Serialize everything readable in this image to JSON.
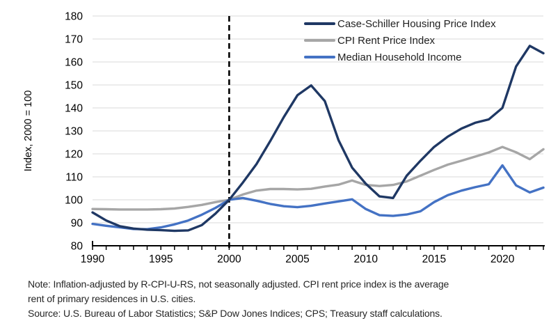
{
  "chart_data": {
    "type": "line",
    "title": "",
    "xlabel": "",
    "ylabel": "Index, 2000 = 100",
    "xlim": [
      1990,
      2023
    ],
    "ylim": [
      80,
      180
    ],
    "grid": "horizontal",
    "legend_position": "top-right-inside",
    "x_tick_labels": [
      1990,
      1995,
      2000,
      2005,
      2010,
      2015,
      2020
    ],
    "y_ticks": [
      80,
      90,
      100,
      110,
      120,
      130,
      140,
      150,
      160,
      170,
      180
    ],
    "reference_line": {
      "x": 2000,
      "style": "dashed",
      "color": "#000000"
    },
    "x": [
      1990,
      1991,
      1992,
      1993,
      1994,
      1995,
      1996,
      1997,
      1998,
      1999,
      2000,
      2001,
      2002,
      2003,
      2004,
      2005,
      2006,
      2007,
      2008,
      2009,
      2010,
      2011,
      2012,
      2013,
      2014,
      2015,
      2016,
      2017,
      2018,
      2019,
      2020,
      2021,
      2022,
      2023
    ],
    "series": [
      {
        "name": "Case-Schiller Housing Price Index",
        "color": "#1f3864",
        "values": [
          94.5,
          91,
          88.5,
          87.5,
          87,
          86.8,
          86.5,
          86.7,
          89,
          94,
          100,
          107.5,
          115.5,
          125.5,
          136,
          145.5,
          149.8,
          143,
          126,
          114,
          107,
          101.5,
          100.8,
          110.5,
          117,
          123,
          127.5,
          131,
          133.5,
          135,
          140,
          158,
          167,
          163.8
        ]
      },
      {
        "name": "CPI Rent Price Index",
        "color": "#a6a6a6",
        "values": [
          96,
          95.9,
          95.8,
          95.8,
          95.8,
          95.9,
          96.2,
          96.9,
          97.8,
          99,
          100,
          102.3,
          104,
          104.7,
          104.7,
          104.5,
          104.8,
          105.8,
          106.6,
          108.4,
          106.5,
          106,
          106.5,
          108,
          110.5,
          113,
          115.3,
          117,
          118.8,
          120.6,
          123,
          120.7,
          117.7,
          122
        ]
      },
      {
        "name": "Median Household Income",
        "color": "#4472c4",
        "values": [
          89.5,
          88.7,
          88,
          87.3,
          87.2,
          88,
          89.3,
          91,
          93.5,
          96.5,
          100,
          100.8,
          99.6,
          98.2,
          97.2,
          96.8,
          97.4,
          98.4,
          99.3,
          100.2,
          96,
          93.3,
          93,
          93.6,
          95,
          99,
          102,
          104,
          105.5,
          106.8,
          115,
          106.3,
          103.2,
          105.3
        ]
      }
    ]
  },
  "footer": {
    "lines": [
      "Note: Inflation-adjusted by R-CPI-U-RS, not seasonally adjusted. CPI rent price index is the average",
      "rent of primary residences in U.S. cities.",
      "Source: U.S. Bureau of Labor Statistics; S&P Dow Jones Indices; CPS; Treasury staff calculations."
    ]
  },
  "colors": {
    "gridline": "#d9d9d9",
    "axis": "#000000",
    "text": "#000000"
  }
}
